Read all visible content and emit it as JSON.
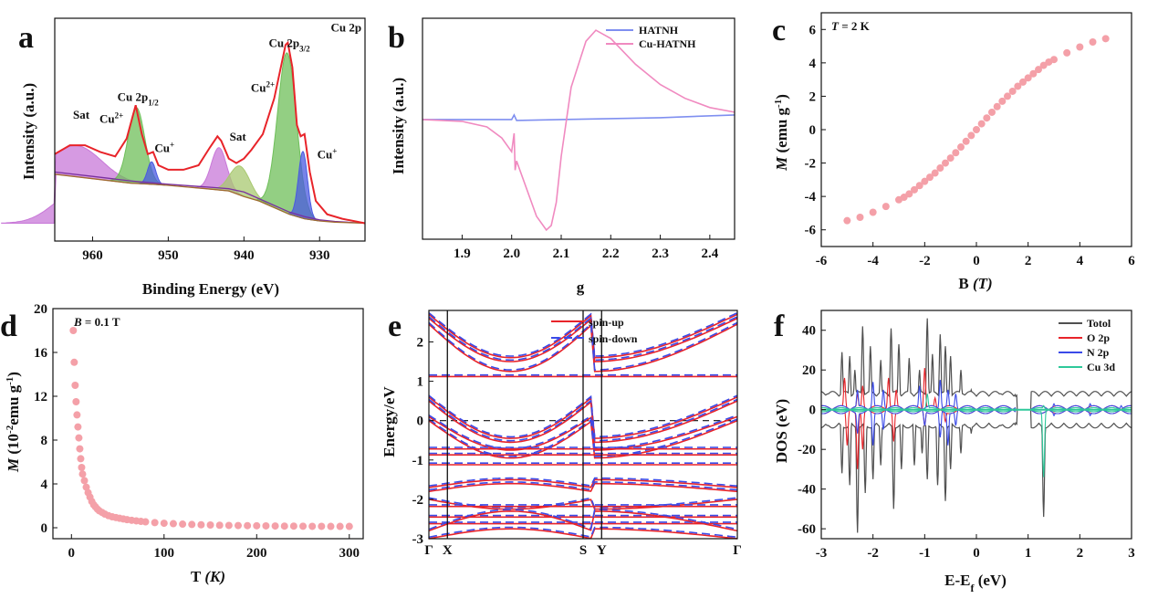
{
  "chart_data": [
    {
      "id": "a",
      "panel_letter": "a",
      "type": "line",
      "xlabel": "Binding Energy (eV)",
      "ylabel": "Intensity (a.u.)",
      "xlim": [
        965,
        924
      ],
      "ylim": [
        0,
        1
      ],
      "x_reversed": true,
      "xticks": [
        960,
        950,
        940,
        930
      ],
      "annotations": [
        {
          "text": "Cu 2p",
          "x": 926.5,
          "y": 0.94
        },
        {
          "text": "Cu 2p",
          "sub": "3/2",
          "x": 934,
          "y": 0.87
        },
        {
          "text": "Cu",
          "sup": "2+",
          "x": 937.5,
          "y": 0.67
        },
        {
          "text": "Cu 2p",
          "sub": "1/2",
          "x": 954,
          "y": 0.63
        },
        {
          "text": "Cu",
          "sup": "2+",
          "x": 957.5,
          "y": 0.53
        },
        {
          "text": "Sat",
          "x": 961.5,
          "y": 0.55
        },
        {
          "text": "Cu",
          "sup": "+",
          "x": 950.5,
          "y": 0.4
        },
        {
          "text": "Sat",
          "x": 940.8,
          "y": 0.45
        },
        {
          "text": "Cu",
          "sup": "+",
          "x": 929,
          "y": 0.37
        }
      ],
      "series": [
        {
          "role": "envelope",
          "color": "#e8242a",
          "x": [
            965,
            963,
            961,
            959,
            957,
            955.5,
            954.3,
            953.5,
            952.7,
            952,
            951.3,
            950,
            948,
            946,
            944.5,
            943.5,
            943,
            942,
            941,
            940,
            939,
            937.5,
            936,
            935,
            934.5,
            934.2,
            933.6,
            933,
            932.5,
            932,
            931.3,
            930.5,
            929,
            927,
            924
          ],
          "y": [
            0.39,
            0.43,
            0.43,
            0.4,
            0.38,
            0.46,
            0.61,
            0.48,
            0.39,
            0.4,
            0.34,
            0.32,
            0.32,
            0.34,
            0.42,
            0.47,
            0.45,
            0.37,
            0.35,
            0.37,
            0.41,
            0.48,
            0.64,
            0.8,
            0.88,
            0.89,
            0.78,
            0.52,
            0.47,
            0.48,
            0.31,
            0.18,
            0.12,
            0.1,
            0.08
          ]
        },
        {
          "role": "background",
          "color": "#a06a30",
          "x": [
            965,
            960,
            955,
            952,
            950,
            945,
            942,
            940,
            938,
            936,
            934,
            932,
            930,
            928,
            924
          ],
          "y": [
            0.3,
            0.28,
            0.26,
            0.255,
            0.25,
            0.235,
            0.225,
            0.2,
            0.18,
            0.15,
            0.12,
            0.1,
            0.09,
            0.085,
            0.08
          ]
        },
        {
          "role": "fit-purple",
          "color": "#7a2fa0",
          "x": [
            965,
            960,
            955,
            950,
            946,
            944,
            942,
            940,
            938,
            936,
            934,
            932,
            930,
            928,
            924
          ],
          "y": [
            0.31,
            0.29,
            0.27,
            0.255,
            0.245,
            0.24,
            0.235,
            0.22,
            0.19,
            0.16,
            0.13,
            0.11,
            0.095,
            0.088,
            0.08
          ]
        }
      ],
      "peaks": [
        {
          "name": "Sat",
          "center": 962,
          "height": 0.14,
          "width": 3.2,
          "color": "#c878d8"
        },
        {
          "name": "Cu2+ 2p1/2",
          "center": 954.2,
          "height": 0.34,
          "width": 1.1,
          "color": "#6fbf5a"
        },
        {
          "name": "Cu+ 2p1/2",
          "center": 952.2,
          "height": 0.1,
          "width": 0.55,
          "color": "#4a5ae0"
        },
        {
          "name": "Sat",
          "center": 943.3,
          "height": 0.19,
          "width": 1.0,
          "color": "#c878d8"
        },
        {
          "name": "Sat",
          "center": 940.5,
          "height": 0.13,
          "width": 1.3,
          "color": "#a8c870"
        },
        {
          "name": "Cu2+ 2p3/2",
          "center": 934.3,
          "height": 0.72,
          "width": 1.25,
          "color": "#6fbf5a"
        },
        {
          "name": "Cu+ 2p3/2",
          "center": 932.2,
          "height": 0.3,
          "width": 0.6,
          "color": "#4a5ae0"
        }
      ]
    },
    {
      "id": "b",
      "panel_letter": "b",
      "type": "line",
      "xlabel": "g",
      "ylabel": "Intensity (a.u.)",
      "xlim": [
        1.82,
        2.45
      ],
      "ylim": [
        -1.3,
        1.1
      ],
      "xticks": [
        1.9,
        2.0,
        2.1,
        2.2,
        2.3,
        2.4
      ],
      "legend": {
        "position": "top-right",
        "entries": [
          "HATNH",
          "Cu-HATNH"
        ]
      },
      "series": [
        {
          "name": "HATNH",
          "color": "#7f8ff0",
          "x": [
            1.82,
            1.9,
            2.0,
            2.005,
            2.01,
            2.1,
            2.2,
            2.3,
            2.45
          ],
          "y": [
            0.0,
            0.0,
            0.0,
            0.05,
            -0.01,
            0.0,
            0.01,
            0.02,
            0.05
          ]
        },
        {
          "name": "Cu-HATNH",
          "color": "#f08ac0",
          "x": [
            1.82,
            1.9,
            1.95,
            1.98,
            2.0,
            2.005,
            2.007,
            2.01,
            2.03,
            2.05,
            2.07,
            2.08,
            2.09,
            2.1,
            2.12,
            2.15,
            2.17,
            2.2,
            2.25,
            2.3,
            2.35,
            2.4,
            2.45
          ],
          "y": [
            0.0,
            -0.02,
            -0.08,
            -0.2,
            -0.35,
            -0.15,
            -0.55,
            -0.45,
            -0.75,
            -1.05,
            -1.2,
            -1.15,
            -0.9,
            -0.4,
            0.35,
            0.85,
            0.97,
            0.88,
            0.6,
            0.38,
            0.23,
            0.13,
            0.08
          ]
        }
      ]
    },
    {
      "id": "c",
      "panel_letter": "c",
      "type": "scatter",
      "xlabel": "B (T)",
      "ylabel": "M (emu g-1)",
      "title_text": "T = 2 K",
      "xlim": [
        -6,
        6
      ],
      "ylim": [
        -7,
        7
      ],
      "xticks": [
        -6,
        -4,
        -2,
        0,
        2,
        4,
        6
      ],
      "yticks": [
        -6,
        -4,
        -2,
        0,
        2,
        4,
        6
      ],
      "color": "#f4a0a8",
      "x": [
        -5,
        -4.5,
        -4,
        -3.5,
        -3,
        -2.8,
        -2.6,
        -2.4,
        -2.2,
        -2,
        -1.8,
        -1.6,
        -1.4,
        -1.2,
        -1,
        -0.8,
        -0.6,
        -0.4,
        -0.2,
        0,
        0.2,
        0.4,
        0.6,
        0.8,
        1,
        1.2,
        1.4,
        1.6,
        1.8,
        2,
        2.2,
        2.4,
        2.6,
        2.8,
        3,
        3.5,
        4,
        4.5,
        5
      ],
      "y": [
        -5.45,
        -5.25,
        -4.95,
        -4.6,
        -4.2,
        -4.05,
        -3.85,
        -3.6,
        -3.35,
        -3.1,
        -2.85,
        -2.6,
        -2.3,
        -2,
        -1.7,
        -1.38,
        -1.04,
        -0.7,
        -0.35,
        0,
        0.35,
        0.7,
        1.04,
        1.38,
        1.7,
        2,
        2.3,
        2.6,
        2.85,
        3.1,
        3.35,
        3.6,
        3.85,
        4.05,
        4.2,
        4.6,
        4.95,
        5.25,
        5.45
      ]
    },
    {
      "id": "d",
      "panel_letter": "d",
      "type": "scatter",
      "xlabel": "T (K)",
      "ylabel": "M (10-2emu g-1)",
      "title_text": "B = 0.1 T",
      "xlim": [
        -20,
        315
      ],
      "ylim": [
        -1,
        20
      ],
      "xticks": [
        0,
        100,
        200,
        300
      ],
      "yticks": [
        0,
        4,
        8,
        12,
        16,
        20
      ],
      "color": "#f4a0a8",
      "x": [
        2,
        3,
        4,
        5,
        6,
        7,
        8,
        9,
        10,
        11,
        12,
        14,
        16,
        18,
        20,
        22,
        24,
        26,
        28,
        30,
        33,
        36,
        40,
        44,
        48,
        52,
        56,
        60,
        65,
        70,
        75,
        80,
        90,
        100,
        110,
        120,
        130,
        140,
        150,
        160,
        170,
        180,
        190,
        200,
        210,
        220,
        230,
        240,
        250,
        260,
        270,
        280,
        290,
        300
      ],
      "y": [
        18,
        15.1,
        13,
        11.5,
        10.3,
        9.2,
        8.2,
        7.2,
        6.3,
        5.5,
        4.9,
        4.3,
        3.7,
        3.2,
        2.8,
        2.4,
        2.1,
        1.9,
        1.7,
        1.55,
        1.4,
        1.25,
        1.1,
        1.0,
        0.93,
        0.86,
        0.8,
        0.74,
        0.68,
        0.63,
        0.58,
        0.54,
        0.47,
        0.41,
        0.37,
        0.33,
        0.3,
        0.27,
        0.25,
        0.23,
        0.21,
        0.2,
        0.19,
        0.18,
        0.17,
        0.16,
        0.15,
        0.15,
        0.14,
        0.13,
        0.13,
        0.12,
        0.12,
        0.12
      ]
    },
    {
      "id": "e",
      "panel_letter": "e",
      "type": "line",
      "xlabel": "",
      "ylabel": "Energy/eV",
      "xlim": [
        0,
        1
      ],
      "ylim": [
        -3,
        2.8
      ],
      "yticks": [
        -3,
        -2,
        -1,
        0,
        1,
        2
      ],
      "k_points": [
        {
          "label": "Γ",
          "x": 0
        },
        {
          "label": "X",
          "x": 0.06
        },
        {
          "label": "S",
          "x": 0.5
        },
        {
          "label": "Y",
          "x": 0.56
        },
        {
          "label": "Γ",
          "x": 1
        }
      ],
      "legend": {
        "position": "top-center",
        "entries": [
          "spin-up",
          "spin-down"
        ]
      },
      "colors": {
        "spin-up": "#e8242a",
        "spin-down": "#3a4ae8"
      },
      "bands": [
        {
          "edge": 2.7,
          "mid": 1.6,
          "shape": "dip"
        },
        {
          "edge": 2.6,
          "mid": 1.5,
          "shape": "dip"
        },
        {
          "edge": 2.45,
          "mid": 1.25,
          "shape": "dip"
        },
        {
          "edge": 1.14,
          "mid": 1.12,
          "shape": "flat"
        },
        {
          "edge": 0.6,
          "mid": -0.45,
          "shape": "dip"
        },
        {
          "edge": 0.5,
          "mid": -0.55,
          "shape": "dip"
        },
        {
          "edge": 0.1,
          "mid": -0.75,
          "shape": "dip"
        },
        {
          "edge": 0.0,
          "mid": -0.95,
          "shape": "dip"
        },
        {
          "edge": -0.7,
          "mid": -0.72,
          "shape": "flat"
        },
        {
          "edge": -0.85,
          "mid": -0.87,
          "shape": "flat"
        },
        {
          "edge": -1.1,
          "mid": -1.12,
          "shape": "flat"
        },
        {
          "edge": -1.7,
          "mid": -1.5,
          "shape": "bump"
        },
        {
          "edge": -1.8,
          "mid": -1.6,
          "shape": "bump"
        },
        {
          "edge": -2.0,
          "mid": -2.25,
          "shape": "dip"
        },
        {
          "edge": -2.2,
          "mid": -2.18,
          "shape": "flat"
        },
        {
          "edge": -2.4,
          "mid": -2.45,
          "shape": "flat"
        },
        {
          "edge": -2.6,
          "mid": -2.62,
          "shape": "flat"
        },
        {
          "edge": -2.8,
          "mid": -2.3,
          "shape": "bump"
        },
        {
          "edge": -3.0,
          "mid": -2.75,
          "shape": "bump"
        }
      ]
    },
    {
      "id": "f",
      "panel_letter": "f",
      "type": "line",
      "xlabel": "E-Ef (eV)",
      "ylabel": "DOS (eV)",
      "xlim": [
        -3,
        3
      ],
      "ylim": [
        -65,
        50
      ],
      "xticks": [
        -3,
        -2,
        -1,
        0,
        1,
        2,
        3
      ],
      "yticks": [
        -60,
        -40,
        -20,
        0,
        20,
        40
      ],
      "legend": {
        "position": "top-right",
        "entries": [
          "Totol",
          "O 2p",
          "N 2p",
          "Cu 3d"
        ]
      },
      "series": [
        {
          "name": "Totol",
          "color": "#505050",
          "up": [
            [
              -2.6,
              29
            ],
            [
              -2.45,
              27
            ],
            [
              -2.35,
              20
            ],
            [
              -2.2,
              42
            ],
            [
              -2.05,
              32
            ],
            [
              -1.85,
              25
            ],
            [
              -1.65,
              41
            ],
            [
              -1.5,
              33
            ],
            [
              -1.3,
              26
            ],
            [
              -1.1,
              20
            ],
            [
              -0.95,
              46
            ],
            [
              -0.85,
              28
            ],
            [
              -0.7,
              38
            ],
            [
              -0.6,
              32
            ],
            [
              -0.5,
              27
            ],
            [
              -0.3,
              20
            ],
            [
              -0.1,
              10
            ],
            [
              0.4,
              6
            ],
            [
              1.3,
              8
            ],
            [
              1.5,
              5
            ],
            [
              2.0,
              6
            ],
            [
              2.5,
              5
            ],
            [
              2.8,
              9
            ]
          ],
          "down": [
            [
              -2.6,
              -32
            ],
            [
              -2.45,
              -38
            ],
            [
              -2.3,
              -62
            ],
            [
              -2.15,
              -42
            ],
            [
              -2.0,
              -35
            ],
            [
              -1.85,
              -28
            ],
            [
              -1.6,
              -50
            ],
            [
              -1.45,
              -30
            ],
            [
              -1.2,
              -28
            ],
            [
              -1.05,
              -22
            ],
            [
              -0.95,
              -35
            ],
            [
              -0.75,
              -38
            ],
            [
              -0.6,
              -46
            ],
            [
              -0.5,
              -30
            ],
            [
              -0.3,
              -22
            ],
            [
              -0.1,
              -12
            ],
            [
              0.4,
              -8
            ],
            [
              1.3,
              -54
            ],
            [
              1.5,
              -6
            ],
            [
              2.0,
              -7
            ],
            [
              2.5,
              -6
            ],
            [
              2.8,
              -9
            ]
          ],
          "base": 8
        },
        {
          "name": "O 2p",
          "color": "#e8242a",
          "up": [
            [
              -2.55,
              16
            ],
            [
              -2.3,
              8
            ],
            [
              -2.2,
              12
            ],
            [
              -1.7,
              16
            ],
            [
              -1.55,
              10
            ],
            [
              -1.0,
              21
            ],
            [
              -0.8,
              6
            ]
          ],
          "down": [
            [
              -2.5,
              -18
            ],
            [
              -2.3,
              -30
            ],
            [
              -2.2,
              -20
            ],
            [
              -1.6,
              -16
            ],
            [
              -1.0,
              -8
            ],
            [
              -0.6,
              -6
            ]
          ],
          "base": 2
        },
        {
          "name": "N 2p",
          "color": "#3a4ae8",
          "up": [
            [
              -2.3,
              10
            ],
            [
              -2.0,
              14
            ],
            [
              -1.8,
              10
            ],
            [
              -1.1,
              12
            ],
            [
              -0.7,
              15
            ],
            [
              -0.55,
              10
            ],
            [
              -0.4,
              8
            ],
            [
              1.5,
              3
            ],
            [
              2.2,
              3
            ],
            [
              2.8,
              2
            ]
          ],
          "down": [
            [
              -2.3,
              -12
            ],
            [
              -2.0,
              -18
            ],
            [
              -1.8,
              -10
            ],
            [
              -1.0,
              -8
            ],
            [
              -0.7,
              -14
            ],
            [
              -0.55,
              -18
            ],
            [
              -0.4,
              -8
            ],
            [
              1.5,
              -3
            ],
            [
              2.2,
              -3
            ]
          ],
          "base": 2
        },
        {
          "name": "Cu 3d",
          "color": "#2ec89a",
          "up": [
            [
              -0.95,
              8
            ],
            [
              1.3,
              2
            ]
          ],
          "down": [
            [
              1.3,
              -34
            ]
          ],
          "base": 1
        }
      ]
    }
  ]
}
